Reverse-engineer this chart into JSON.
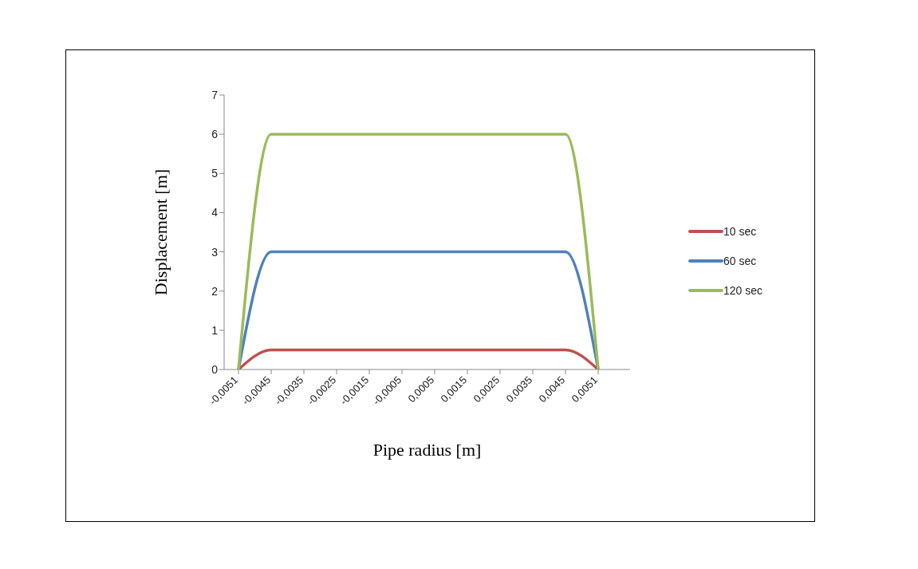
{
  "chart_data": {
    "type": "line",
    "xlabel": "Pipe radius [m]",
    "ylabel": "Displacement [m]",
    "categories": [
      "-0,0051",
      "-0,0045",
      "-0,0035",
      "-0,0025",
      "-0,0015",
      "-0,0005",
      "0,0005",
      "0,0015",
      "0,0025",
      "0,0035",
      "0,0045",
      "0,0051"
    ],
    "series": [
      {
        "name": "10 sec",
        "color": "#c0504d",
        "values": [
          0,
          0.5,
          0.5,
          0.5,
          0.5,
          0.5,
          0.5,
          0.5,
          0.5,
          0.5,
          0.5,
          0
        ]
      },
      {
        "name": "60 sec",
        "color": "#4f81bd",
        "values": [
          0,
          3,
          3,
          3,
          3,
          3,
          3,
          3,
          3,
          3,
          3,
          0
        ]
      },
      {
        "name": "120 sec",
        "color": "#9bbb59",
        "values": [
          0,
          6,
          6,
          6,
          6,
          6,
          6,
          6,
          6,
          6,
          6,
          0
        ]
      }
    ],
    "ylim": [
      0,
      7
    ],
    "yticks": [
      0,
      1,
      2,
      3,
      4,
      5,
      6,
      7
    ],
    "grid": false,
    "legend": "right",
    "marker": "none",
    "line_style": "solid"
  }
}
